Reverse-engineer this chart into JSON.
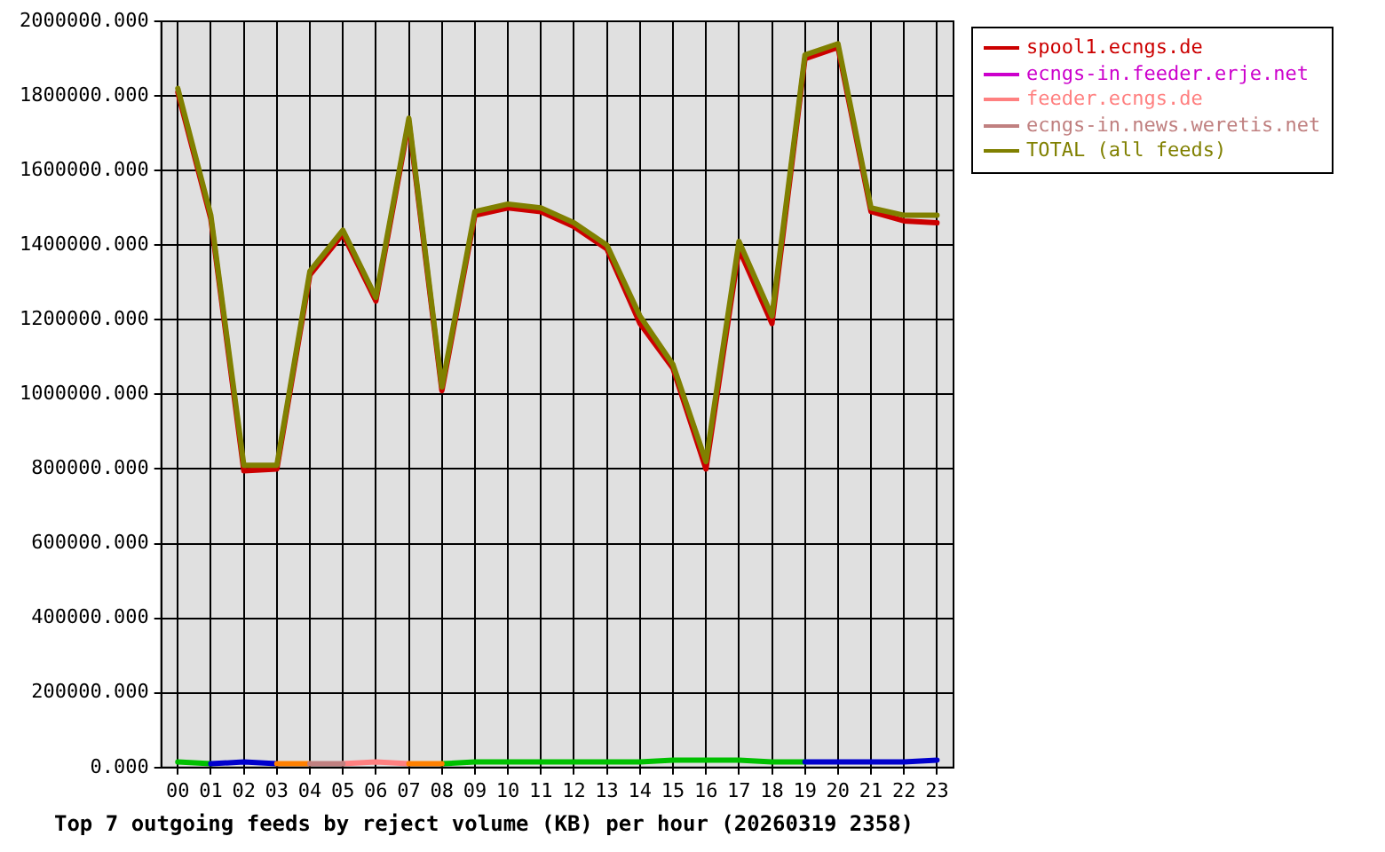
{
  "chart_data": {
    "type": "line",
    "title": "Top 7 outgoing feeds by reject volume (KB) per hour (20260319 2358)",
    "categories": [
      "00",
      "01",
      "02",
      "03",
      "04",
      "05",
      "06",
      "07",
      "08",
      "09",
      "10",
      "11",
      "12",
      "13",
      "14",
      "15",
      "16",
      "17",
      "18",
      "19",
      "20",
      "21",
      "22",
      "23"
    ],
    "ylim": [
      0,
      2000000
    ],
    "yticks": [
      {
        "value": 0,
        "label": "0.000"
      },
      {
        "value": 200000,
        "label": "200000.000"
      },
      {
        "value": 400000,
        "label": "400000.000"
      },
      {
        "value": 600000,
        "label": "600000.000"
      },
      {
        "value": 800000,
        "label": "800000.000"
      },
      {
        "value": 1000000,
        "label": "1000000.000"
      },
      {
        "value": 1200000,
        "label": "1200000.000"
      },
      {
        "value": 1400000,
        "label": "1400000.000"
      },
      {
        "value": 1600000,
        "label": "1600000.000"
      },
      {
        "value": 1800000,
        "label": "1800000.000"
      },
      {
        "value": 2000000,
        "label": "2000000.000"
      }
    ],
    "grid": true,
    "legend": "top right",
    "marker": "none",
    "line_style": "solid",
    "series": [
      {
        "name": "spool1.ecngs.de",
        "color": "#cc0000",
        "values": [
          1810000,
          1470000,
          795000,
          800000,
          1320000,
          1430000,
          1250000,
          1730000,
          1010000,
          1480000,
          1500000,
          1490000,
          1450000,
          1390000,
          1190000,
          1070000,
          800000,
          1390000,
          1190000,
          1900000,
          1930000,
          1490000,
          1465000,
          1460000
        ]
      },
      {
        "color": "#00c000",
        "values": [
          15000,
          10000,
          null,
          null,
          null,
          null,
          null,
          null,
          10000,
          15000,
          15000,
          15000,
          15000,
          15000,
          15000,
          20000,
          20000,
          20000,
          15000,
          15000,
          null,
          null,
          null,
          null
        ]
      },
      {
        "color": "#0000cc",
        "values": [
          null,
          10000,
          15000,
          10000,
          null,
          null,
          null,
          null,
          null,
          null,
          null,
          null,
          null,
          null,
          null,
          null,
          null,
          null,
          null,
          15000,
          15000,
          15000,
          15000,
          20000
        ]
      },
      {
        "name": "ecngs-in.feeder.erje.net",
        "color": "#cc00cc",
        "values": [
          null,
          null,
          null,
          null,
          null,
          null,
          null,
          null,
          null,
          null,
          null,
          null,
          null,
          null,
          null,
          null,
          null,
          null,
          null,
          null,
          null,
          null,
          null,
          null
        ]
      },
      {
        "name": "feeder.ecngs.de",
        "color": "#ff8080",
        "values": [
          null,
          null,
          null,
          null,
          null,
          10000,
          15000,
          10000,
          null,
          null,
          null,
          null,
          null,
          null,
          null,
          null,
          null,
          null,
          null,
          null,
          null,
          null,
          null,
          null
        ]
      },
      {
        "color": "#ff8000",
        "values": [
          null,
          null,
          null,
          10000,
          10000,
          null,
          null,
          10000,
          10000,
          null,
          null,
          null,
          null,
          null,
          null,
          null,
          null,
          null,
          null,
          null,
          null,
          null,
          null,
          null
        ]
      },
      {
        "name": "ecngs-in.news.weretis.net",
        "color": "#c08080",
        "values": [
          null,
          null,
          null,
          null,
          10000,
          10000,
          null,
          null,
          null,
          null,
          null,
          null,
          null,
          null,
          null,
          null,
          null,
          null,
          null,
          null,
          null,
          null,
          null,
          null
        ]
      },
      {
        "name": "TOTAL (all feeds)",
        "color": "#808000",
        "values": [
          1820000,
          1480000,
          810000,
          810000,
          1330000,
          1440000,
          1260000,
          1740000,
          1020000,
          1490000,
          1510000,
          1500000,
          1460000,
          1400000,
          1210000,
          1080000,
          820000,
          1410000,
          1210000,
          1910000,
          1940000,
          1500000,
          1480000,
          1480000
        ]
      }
    ]
  }
}
